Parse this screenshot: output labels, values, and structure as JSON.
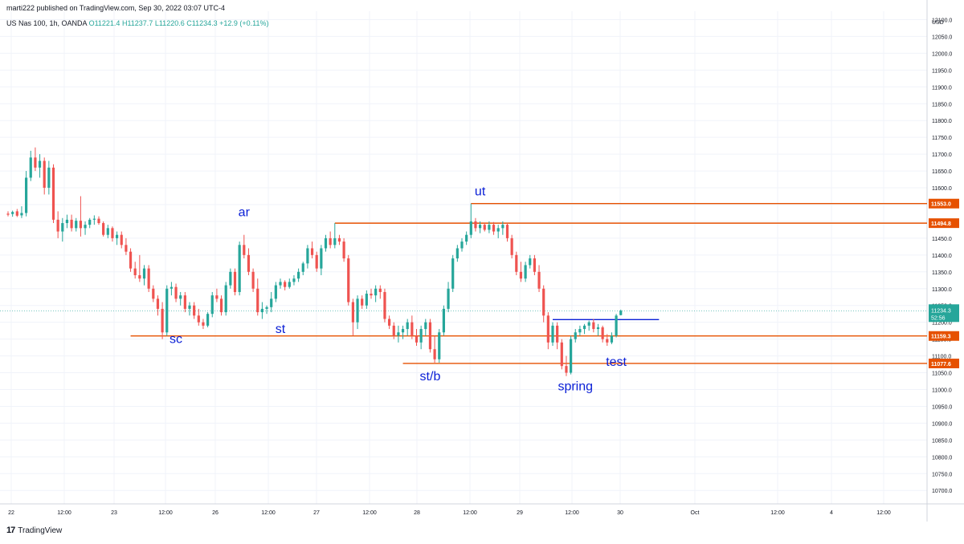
{
  "header": {
    "publish_text": "marti222 published on TradingView.com, Sep 30, 2022 03:07 UTC-4",
    "symbol": "US Nas 100, 1h, OANDA",
    "open": "O11221.4",
    "high": "H11237.7",
    "low": "L11220.6",
    "close": "C11234.3",
    "change": "+12.9 (+0.11%)"
  },
  "footer": {
    "brand": "TradingView"
  },
  "colors": {
    "up": "#26a69a",
    "down": "#ef5350",
    "level": "#e65100",
    "annotation": "#0a1fd6",
    "grid": "#f0f3fa"
  },
  "chart_data": {
    "type": "candlestick",
    "currency": "USD",
    "ylim": [
      10660,
      12125
    ],
    "y_ticks": [
      "12100.0",
      "12050.0",
      "12000.0",
      "11950.0",
      "11900.0",
      "11850.0",
      "11800.0",
      "11750.0",
      "11700.0",
      "11650.0",
      "11600.0",
      "11550.0",
      "11500.0",
      "11450.0",
      "11400.0",
      "11350.0",
      "11300.0",
      "11250.0",
      "11200.0",
      "11150.0",
      "11100.0",
      "11050.0",
      "11000.0",
      "10950.0",
      "10900.0",
      "10850.0",
      "10800.0",
      "10750.0",
      "10700.0"
    ],
    "x_ticks": [
      "22",
      "12:00",
      "23",
      "12:00",
      "26",
      "12:00",
      "27",
      "12:00",
      "28",
      "12:00",
      "29",
      "12:00",
      "30",
      "Oct",
      "12:00",
      "4",
      "12:00"
    ],
    "candles": [
      {
        "o": 11523,
        "h": 11530,
        "l": 11515,
        "c": 11520
      },
      {
        "o": 11522,
        "h": 11532,
        "l": 11514,
        "c": 11528
      },
      {
        "o": 11530,
        "h": 11537,
        "l": 11513,
        "c": 11517
      },
      {
        "o": 11518,
        "h": 11545,
        "l": 11510,
        "c": 11525
      },
      {
        "o": 11525,
        "h": 11650,
        "l": 11515,
        "c": 11630
      },
      {
        "o": 11630,
        "h": 11710,
        "l": 11620,
        "c": 11690
      },
      {
        "o": 11690,
        "h": 11720,
        "l": 11650,
        "c": 11660
      },
      {
        "o": 11660,
        "h": 11700,
        "l": 11630,
        "c": 11680
      },
      {
        "o": 11680,
        "h": 11690,
        "l": 11580,
        "c": 11600
      },
      {
        "o": 11600,
        "h": 11680,
        "l": 11580,
        "c": 11660
      },
      {
        "o": 11660,
        "h": 11670,
        "l": 11495,
        "c": 11505
      },
      {
        "o": 11505,
        "h": 11530,
        "l": 11450,
        "c": 11470
      },
      {
        "o": 11470,
        "h": 11510,
        "l": 11440,
        "c": 11495
      },
      {
        "o": 11495,
        "h": 11520,
        "l": 11480,
        "c": 11505
      },
      {
        "o": 11505,
        "h": 11520,
        "l": 11470,
        "c": 11480
      },
      {
        "o": 11480,
        "h": 11510,
        "l": 11470,
        "c": 11502
      },
      {
        "o": 11502,
        "h": 11575,
        "l": 11455,
        "c": 11480
      },
      {
        "o": 11480,
        "h": 11500,
        "l": 11460,
        "c": 11490
      },
      {
        "o": 11490,
        "h": 11510,
        "l": 11480,
        "c": 11505
      },
      {
        "o": 11505,
        "h": 11518,
        "l": 11490,
        "c": 11508
      },
      {
        "o": 11508,
        "h": 11515,
        "l": 11490,
        "c": 11495
      },
      {
        "o": 11495,
        "h": 11500,
        "l": 11455,
        "c": 11460
      },
      {
        "o": 11460,
        "h": 11490,
        "l": 11450,
        "c": 11480
      },
      {
        "o": 11480,
        "h": 11485,
        "l": 11440,
        "c": 11450
      },
      {
        "o": 11450,
        "h": 11470,
        "l": 11430,
        "c": 11460
      },
      {
        "o": 11460,
        "h": 11470,
        "l": 11420,
        "c": 11430
      },
      {
        "o": 11430,
        "h": 11450,
        "l": 11400,
        "c": 11410
      },
      {
        "o": 11410,
        "h": 11420,
        "l": 11350,
        "c": 11360
      },
      {
        "o": 11360,
        "h": 11380,
        "l": 11330,
        "c": 11340
      },
      {
        "o": 11340,
        "h": 11400,
        "l": 11320,
        "c": 11330
      },
      {
        "o": 11330,
        "h": 11370,
        "l": 11310,
        "c": 11360
      },
      {
        "o": 11360,
        "h": 11370,
        "l": 11290,
        "c": 11300
      },
      {
        "o": 11300,
        "h": 11310,
        "l": 11260,
        "c": 11270
      },
      {
        "o": 11270,
        "h": 11280,
        "l": 11220,
        "c": 11240
      },
      {
        "o": 11240,
        "h": 11260,
        "l": 11150,
        "c": 11170
      },
      {
        "o": 11170,
        "h": 11310,
        "l": 11160,
        "c": 11300
      },
      {
        "o": 11300,
        "h": 11320,
        "l": 11280,
        "c": 11305
      },
      {
        "o": 11305,
        "h": 11315,
        "l": 11260,
        "c": 11270
      },
      {
        "o": 11270,
        "h": 11290,
        "l": 11250,
        "c": 11280
      },
      {
        "o": 11280,
        "h": 11290,
        "l": 11230,
        "c": 11240
      },
      {
        "o": 11240,
        "h": 11260,
        "l": 11220,
        "c": 11250
      },
      {
        "o": 11250,
        "h": 11260,
        "l": 11210,
        "c": 11220
      },
      {
        "o": 11220,
        "h": 11240,
        "l": 11190,
        "c": 11200
      },
      {
        "o": 11200,
        "h": 11210,
        "l": 11180,
        "c": 11190
      },
      {
        "o": 11190,
        "h": 11230,
        "l": 11185,
        "c": 11225
      },
      {
        "o": 11225,
        "h": 11290,
        "l": 11215,
        "c": 11280
      },
      {
        "o": 11280,
        "h": 11300,
        "l": 11260,
        "c": 11270
      },
      {
        "o": 11270,
        "h": 11280,
        "l": 11220,
        "c": 11230
      },
      {
        "o": 11230,
        "h": 11320,
        "l": 11220,
        "c": 11310
      },
      {
        "o": 11310,
        "h": 11360,
        "l": 11300,
        "c": 11350
      },
      {
        "o": 11350,
        "h": 11360,
        "l": 11280,
        "c": 11290
      },
      {
        "o": 11290,
        "h": 11440,
        "l": 11280,
        "c": 11430
      },
      {
        "o": 11430,
        "h": 11460,
        "l": 11390,
        "c": 11400
      },
      {
        "o": 11400,
        "h": 11420,
        "l": 11340,
        "c": 11350
      },
      {
        "o": 11350,
        "h": 11360,
        "l": 11290,
        "c": 11300
      },
      {
        "o": 11300,
        "h": 11330,
        "l": 11220,
        "c": 11230
      },
      {
        "o": 11230,
        "h": 11260,
        "l": 11210,
        "c": 11240
      },
      {
        "o": 11240,
        "h": 11250,
        "l": 11225,
        "c": 11245
      },
      {
        "o": 11245,
        "h": 11290,
        "l": 11230,
        "c": 11270
      },
      {
        "o": 11270,
        "h": 11320,
        "l": 11260,
        "c": 11310
      },
      {
        "o": 11310,
        "h": 11330,
        "l": 11300,
        "c": 11320
      },
      {
        "o": 11320,
        "h": 11325,
        "l": 11295,
        "c": 11305
      },
      {
        "o": 11305,
        "h": 11330,
        "l": 11300,
        "c": 11320
      },
      {
        "o": 11320,
        "h": 11340,
        "l": 11310,
        "c": 11330
      },
      {
        "o": 11330,
        "h": 11360,
        "l": 11320,
        "c": 11350
      },
      {
        "o": 11350,
        "h": 11380,
        "l": 11340,
        "c": 11375
      },
      {
        "o": 11375,
        "h": 11430,
        "l": 11360,
        "c": 11420
      },
      {
        "o": 11420,
        "h": 11440,
        "l": 11390,
        "c": 11400
      },
      {
        "o": 11400,
        "h": 11410,
        "l": 11350,
        "c": 11360
      },
      {
        "o": 11360,
        "h": 11430,
        "l": 11340,
        "c": 11420
      },
      {
        "o": 11420,
        "h": 11460,
        "l": 11410,
        "c": 11450
      },
      {
        "o": 11450,
        "h": 11470,
        "l": 11420,
        "c": 11430
      },
      {
        "o": 11430,
        "h": 11495,
        "l": 11420,
        "c": 11450
      },
      {
        "o": 11450,
        "h": 11460,
        "l": 11430,
        "c": 11440
      },
      {
        "o": 11440,
        "h": 11450,
        "l": 11380,
        "c": 11390
      },
      {
        "o": 11390,
        "h": 11400,
        "l": 11250,
        "c": 11260
      },
      {
        "o": 11260,
        "h": 11270,
        "l": 11160,
        "c": 11200
      },
      {
        "o": 11200,
        "h": 11280,
        "l": 11180,
        "c": 11270
      },
      {
        "o": 11270,
        "h": 11280,
        "l": 11240,
        "c": 11250
      },
      {
        "o": 11250,
        "h": 11295,
        "l": 11240,
        "c": 11285
      },
      {
        "o": 11285,
        "h": 11300,
        "l": 11270,
        "c": 11280
      },
      {
        "o": 11280,
        "h": 11310,
        "l": 11260,
        "c": 11300
      },
      {
        "o": 11300,
        "h": 11310,
        "l": 11270,
        "c": 11290
      },
      {
        "o": 11290,
        "h": 11300,
        "l": 11200,
        "c": 11210
      },
      {
        "o": 11210,
        "h": 11220,
        "l": 11180,
        "c": 11190
      },
      {
        "o": 11190,
        "h": 11200,
        "l": 11150,
        "c": 11160
      },
      {
        "o": 11160,
        "h": 11190,
        "l": 11140,
        "c": 11170
      },
      {
        "o": 11170,
        "h": 11190,
        "l": 11150,
        "c": 11180
      },
      {
        "o": 11180,
        "h": 11210,
        "l": 11160,
        "c": 11200
      },
      {
        "o": 11200,
        "h": 11220,
        "l": 11150,
        "c": 11160
      },
      {
        "o": 11160,
        "h": 11180,
        "l": 11130,
        "c": 11140
      },
      {
        "o": 11140,
        "h": 11190,
        "l": 11120,
        "c": 11180
      },
      {
        "o": 11180,
        "h": 11210,
        "l": 11160,
        "c": 11200
      },
      {
        "o": 11200,
        "h": 11210,
        "l": 11110,
        "c": 11120
      },
      {
        "o": 11120,
        "h": 11160,
        "l": 11080,
        "c": 11090
      },
      {
        "o": 11090,
        "h": 11180,
        "l": 11080,
        "c": 11170
      },
      {
        "o": 11170,
        "h": 11250,
        "l": 11160,
        "c": 11240
      },
      {
        "o": 11240,
        "h": 11320,
        "l": 11230,
        "c": 11300
      },
      {
        "o": 11300,
        "h": 11400,
        "l": 11290,
        "c": 11390
      },
      {
        "o": 11390,
        "h": 11430,
        "l": 11380,
        "c": 11420
      },
      {
        "o": 11420,
        "h": 11450,
        "l": 11410,
        "c": 11440
      },
      {
        "o": 11440,
        "h": 11470,
        "l": 11430,
        "c": 11460
      },
      {
        "o": 11460,
        "h": 11553,
        "l": 11450,
        "c": 11500
      },
      {
        "o": 11500,
        "h": 11510,
        "l": 11470,
        "c": 11480
      },
      {
        "o": 11480,
        "h": 11500,
        "l": 11465,
        "c": 11490
      },
      {
        "o": 11490,
        "h": 11495,
        "l": 11470,
        "c": 11475
      },
      {
        "o": 11475,
        "h": 11500,
        "l": 11465,
        "c": 11490
      },
      {
        "o": 11490,
        "h": 11498,
        "l": 11460,
        "c": 11470
      },
      {
        "o": 11470,
        "h": 11490,
        "l": 11450,
        "c": 11480
      },
      {
        "o": 11480,
        "h": 11500,
        "l": 11460,
        "c": 11490
      },
      {
        "o": 11490,
        "h": 11495,
        "l": 11440,
        "c": 11450
      },
      {
        "o": 11450,
        "h": 11460,
        "l": 11390,
        "c": 11400
      },
      {
        "o": 11400,
        "h": 11410,
        "l": 11340,
        "c": 11350
      },
      {
        "o": 11350,
        "h": 11380,
        "l": 11320,
        "c": 11330
      },
      {
        "o": 11330,
        "h": 11380,
        "l": 11320,
        "c": 11370
      },
      {
        "o": 11370,
        "h": 11400,
        "l": 11360,
        "c": 11390
      },
      {
        "o": 11390,
        "h": 11400,
        "l": 11340,
        "c": 11350
      },
      {
        "o": 11350,
        "h": 11370,
        "l": 11290,
        "c": 11300
      },
      {
        "o": 11300,
        "h": 11310,
        "l": 11200,
        "c": 11220
      },
      {
        "o": 11220,
        "h": 11230,
        "l": 11120,
        "c": 11140
      },
      {
        "o": 11140,
        "h": 11200,
        "l": 11130,
        "c": 11190
      },
      {
        "o": 11190,
        "h": 11200,
        "l": 11120,
        "c": 11140
      },
      {
        "o": 11140,
        "h": 11150,
        "l": 11060,
        "c": 11070
      },
      {
        "o": 11070,
        "h": 11100,
        "l": 11040,
        "c": 11050
      },
      {
        "o": 11050,
        "h": 11160,
        "l": 11045,
        "c": 11150
      },
      {
        "o": 11150,
        "h": 11180,
        "l": 11140,
        "c": 11170
      },
      {
        "o": 11170,
        "h": 11190,
        "l": 11160,
        "c": 11180
      },
      {
        "o": 11180,
        "h": 11195,
        "l": 11165,
        "c": 11190
      },
      {
        "o": 11190,
        "h": 11205,
        "l": 11175,
        "c": 11200
      },
      {
        "o": 11200,
        "h": 11210,
        "l": 11170,
        "c": 11180
      },
      {
        "o": 11180,
        "h": 11195,
        "l": 11160,
        "c": 11185
      },
      {
        "o": 11185,
        "h": 11190,
        "l": 11140,
        "c": 11150
      },
      {
        "o": 11150,
        "h": 11165,
        "l": 11130,
        "c": 11140
      },
      {
        "o": 11140,
        "h": 11170,
        "l": 11135,
        "c": 11160
      },
      {
        "o": 11160,
        "h": 11225,
        "l": 11155,
        "c": 11220
      },
      {
        "o": 11221.4,
        "h": 11237.7,
        "l": 11220.6,
        "c": 11234.3
      }
    ],
    "levels": [
      {
        "price": 11553.0,
        "label": "11553.0",
        "x_start_index": 102,
        "color": "#e65100"
      },
      {
        "price": 11494.8,
        "label": "11494.8",
        "x_start_index": 72,
        "color": "#e65100"
      },
      {
        "price": 11159.3,
        "label": "11159.3",
        "x_start_index": 27,
        "color": "#e65100"
      },
      {
        "price": 11077.6,
        "label": "11077.6",
        "x_start_index": 87,
        "color": "#e65100"
      }
    ],
    "blue_line": {
      "price": 11208,
      "start_index": 120,
      "end_index": 139,
      "color": "#0a1fd6"
    },
    "current_price": {
      "label": "11234.3",
      "timer": "52:56",
      "color": "#26a69a"
    },
    "annotations": [
      {
        "text": "sc",
        "price": 11138,
        "index": 37
      },
      {
        "text": "ar",
        "price": 11515,
        "index": 52
      },
      {
        "text": "st",
        "price": 11168,
        "index": 60
      },
      {
        "text": "ut",
        "price": 11578,
        "index": 104
      },
      {
        "text": "st/b",
        "price": 11028,
        "index": 93
      },
      {
        "text": "spring",
        "price": 10998,
        "index": 125
      },
      {
        "text": "test",
        "price": 11070,
        "index": 134
      }
    ]
  }
}
